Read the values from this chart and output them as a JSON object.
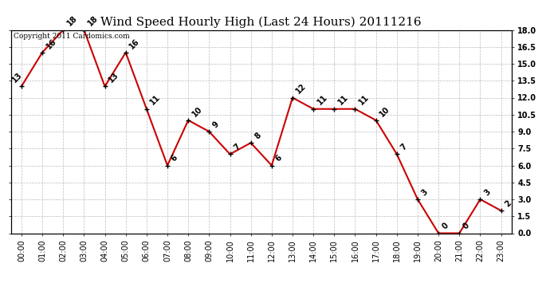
{
  "title": "Wind Speed Hourly High (Last 24 Hours) 20111216",
  "copyright_text": "Copyright 2011 Cardomics.com",
  "hours": [
    "00:00",
    "01:00",
    "02:00",
    "03:00",
    "04:00",
    "05:00",
    "06:00",
    "07:00",
    "08:00",
    "09:00",
    "10:00",
    "11:00",
    "12:00",
    "13:00",
    "14:00",
    "15:00",
    "16:00",
    "17:00",
    "18:00",
    "19:00",
    "20:00",
    "21:00",
    "22:00",
    "23:00"
  ],
  "values": [
    13,
    16,
    18,
    18,
    13,
    16,
    11,
    6,
    10,
    9,
    7,
    8,
    6,
    12,
    11,
    11,
    11,
    10,
    7,
    3,
    0,
    0,
    3,
    2
  ],
  "line_color": "#cc0000",
  "grid_color": "#bbbbbb",
  "background_color": "#ffffff",
  "ylim": [
    0,
    18.0
  ],
  "yticks": [
    0.0,
    1.5,
    3.0,
    4.5,
    6.0,
    7.5,
    9.0,
    10.5,
    12.0,
    13.5,
    15.0,
    16.5,
    18.0
  ],
  "title_fontsize": 11,
  "annotation_fontsize": 7,
  "tick_fontsize": 7,
  "copyright_fontsize": 6.5
}
